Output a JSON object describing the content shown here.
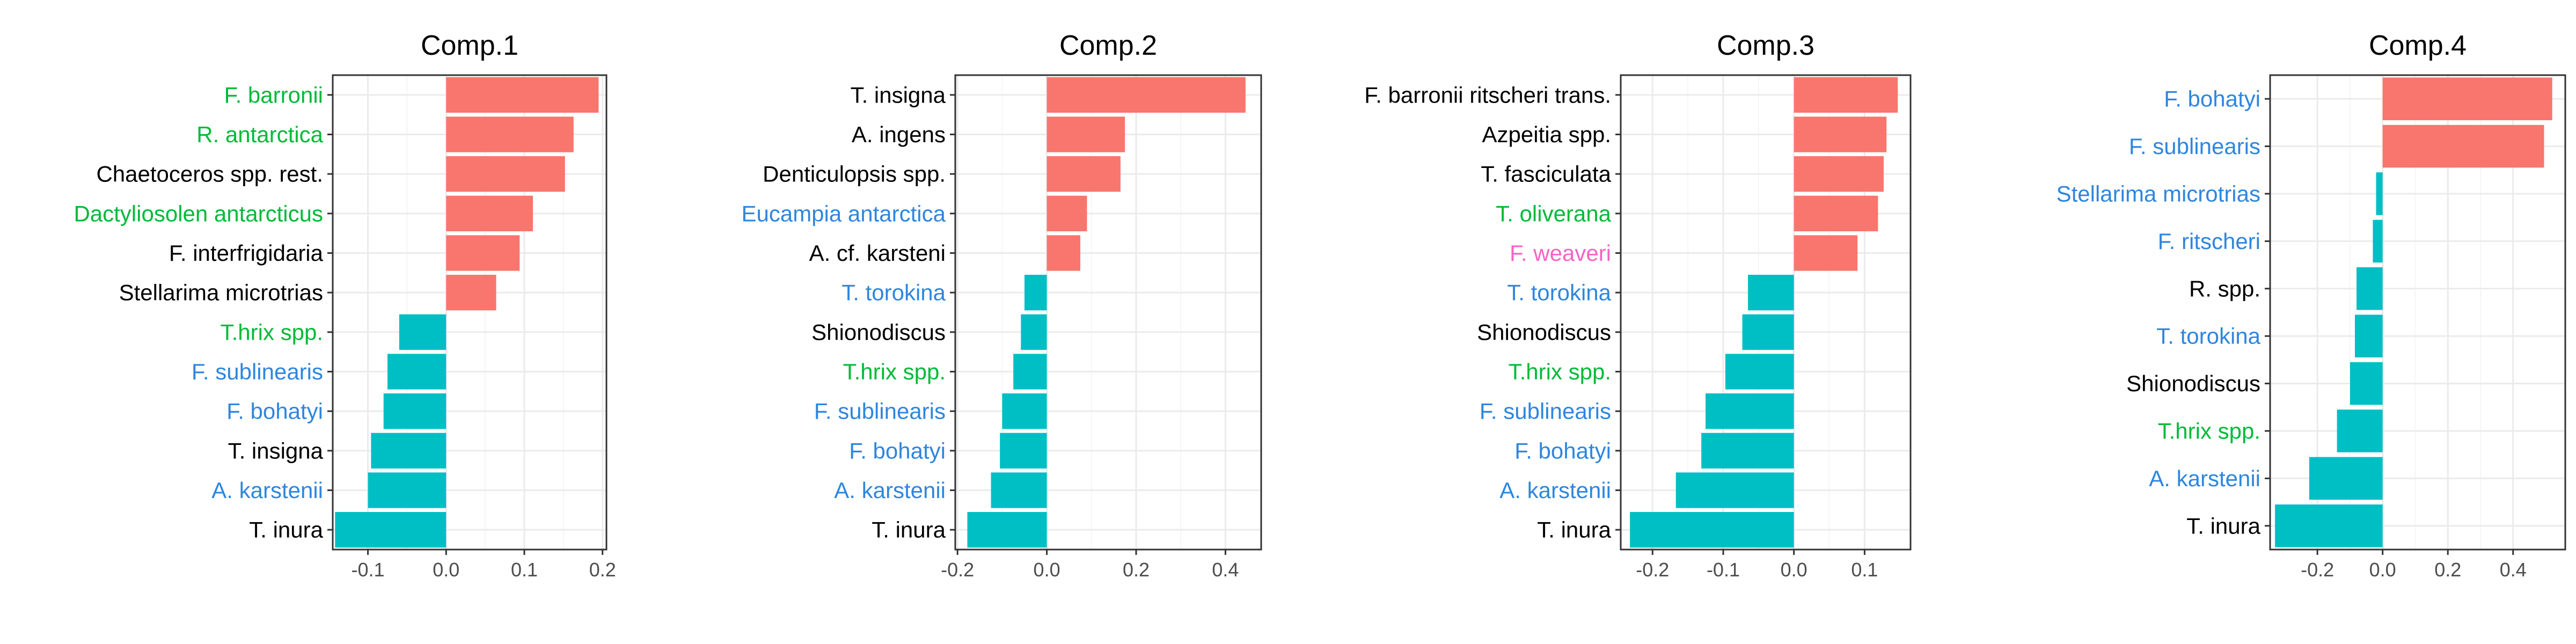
{
  "colors": {
    "positive_bar": "#F8766D",
    "negative_bar": "#00BFC4",
    "label_black": "#000000",
    "label_green": "#00BA38",
    "label_blue": "#2E86DE",
    "label_pink": "#F564C4"
  },
  "chart_data": [
    {
      "type": "bar",
      "orientation": "horizontal",
      "title": "Comp.1",
      "grid": true,
      "xlim": [
        -0.145,
        0.205
      ],
      "xticks": [
        -0.1,
        0.0,
        0.1,
        0.2
      ],
      "xtick_labels": [
        "-0.1",
        "0.0",
        "0.1",
        "0.2"
      ],
      "categories": [
        "F. barronii",
        "R. antarctica",
        "Chaetoceros spp. rest.",
        "Dactyliosolen antarcticus",
        "F. interfrigidaria",
        "Stellarima microtrias ",
        "T.hrix spp.",
        "F. sublinearis",
        "F. bohatyi",
        "T. insigna",
        "A. karstenii",
        "T. inura"
      ],
      "label_colors": [
        "green",
        "green",
        "black",
        "green",
        "black",
        "black",
        "green",
        "blue",
        "blue",
        "black",
        "blue",
        "black"
      ],
      "values": [
        0.195,
        0.163,
        0.152,
        0.111,
        0.094,
        0.064,
        -0.06,
        -0.075,
        -0.08,
        -0.096,
        -0.1,
        -0.142
      ]
    },
    {
      "type": "bar",
      "orientation": "horizontal",
      "title": "Comp.2",
      "grid": true,
      "xlim": [
        -0.205,
        0.48
      ],
      "xticks": [
        -0.2,
        0.0,
        0.2,
        0.4
      ],
      "xtick_labels": [
        "-0.2",
        "0.0",
        "0.2",
        "0.4"
      ],
      "categories": [
        "T. insigna",
        "A. ingens",
        "Denticulopsis spp.",
        "Eucampia antarctica",
        "A. cf. karsteni",
        "T. torokina",
        "Shionodiscus",
        "T.hrix spp.",
        "F. sublinearis",
        "F. bohatyi",
        "A. karstenii",
        "T. inura"
      ],
      "label_colors": [
        "black",
        "black",
        "black",
        "blue",
        "black",
        "blue",
        "black",
        "green",
        "blue",
        "blue",
        "blue",
        "black"
      ],
      "values": [
        0.445,
        0.175,
        0.165,
        0.09,
        0.075,
        -0.05,
        -0.058,
        -0.075,
        -0.1,
        -0.105,
        -0.125,
        -0.178
      ]
    },
    {
      "type": "bar",
      "orientation": "horizontal",
      "title": "Comp.3",
      "grid": true,
      "xlim": [
        -0.245,
        0.165
      ],
      "xticks": [
        -0.2,
        -0.1,
        0.0,
        0.1
      ],
      "xtick_labels": [
        "-0.2",
        "-0.1",
        "0.0",
        "0.1"
      ],
      "categories": [
        "F. barronii ritscheri trans.",
        "Azpeitia spp.",
        "T. fasciculata",
        "T. oliverana",
        "F. weaveri",
        "T. torokina",
        "Shionodiscus",
        "T.hrix spp.",
        "F. sublinearis",
        "F. bohatyi",
        "A. karstenii",
        "T. inura"
      ],
      "label_colors": [
        "black",
        "black",
        "black",
        "green",
        "pink",
        "blue",
        "black",
        "green",
        "blue",
        "blue",
        "blue",
        "black"
      ],
      "values": [
        0.147,
        0.131,
        0.127,
        0.119,
        0.09,
        -0.065,
        -0.073,
        -0.097,
        -0.125,
        -0.131,
        -0.167,
        -0.232
      ]
    },
    {
      "type": "bar",
      "orientation": "horizontal",
      "title": "Comp.4",
      "grid": true,
      "xlim": [
        -0.345,
        0.56
      ],
      "xticks": [
        -0.2,
        0.0,
        0.2,
        0.4
      ],
      "xtick_labels": [
        "-0.2",
        "0.0",
        "0.2",
        "0.4"
      ],
      "categories": [
        "F. bohatyi",
        "F. sublinearis",
        "Stellarima microtrias",
        "F. ritscheri",
        "R. spp.",
        "T. torokina",
        "Shionodiscus",
        "T.hrix spp.",
        "A. karstenii",
        "T. inura"
      ],
      "label_colors": [
        "blue",
        "blue",
        "blue",
        "blue",
        "black",
        "blue",
        "black",
        "green",
        "blue",
        "black"
      ],
      "values": [
        0.52,
        0.495,
        -0.02,
        -0.03,
        -0.08,
        -0.085,
        -0.1,
        -0.14,
        -0.225,
        -0.33
      ]
    }
  ]
}
